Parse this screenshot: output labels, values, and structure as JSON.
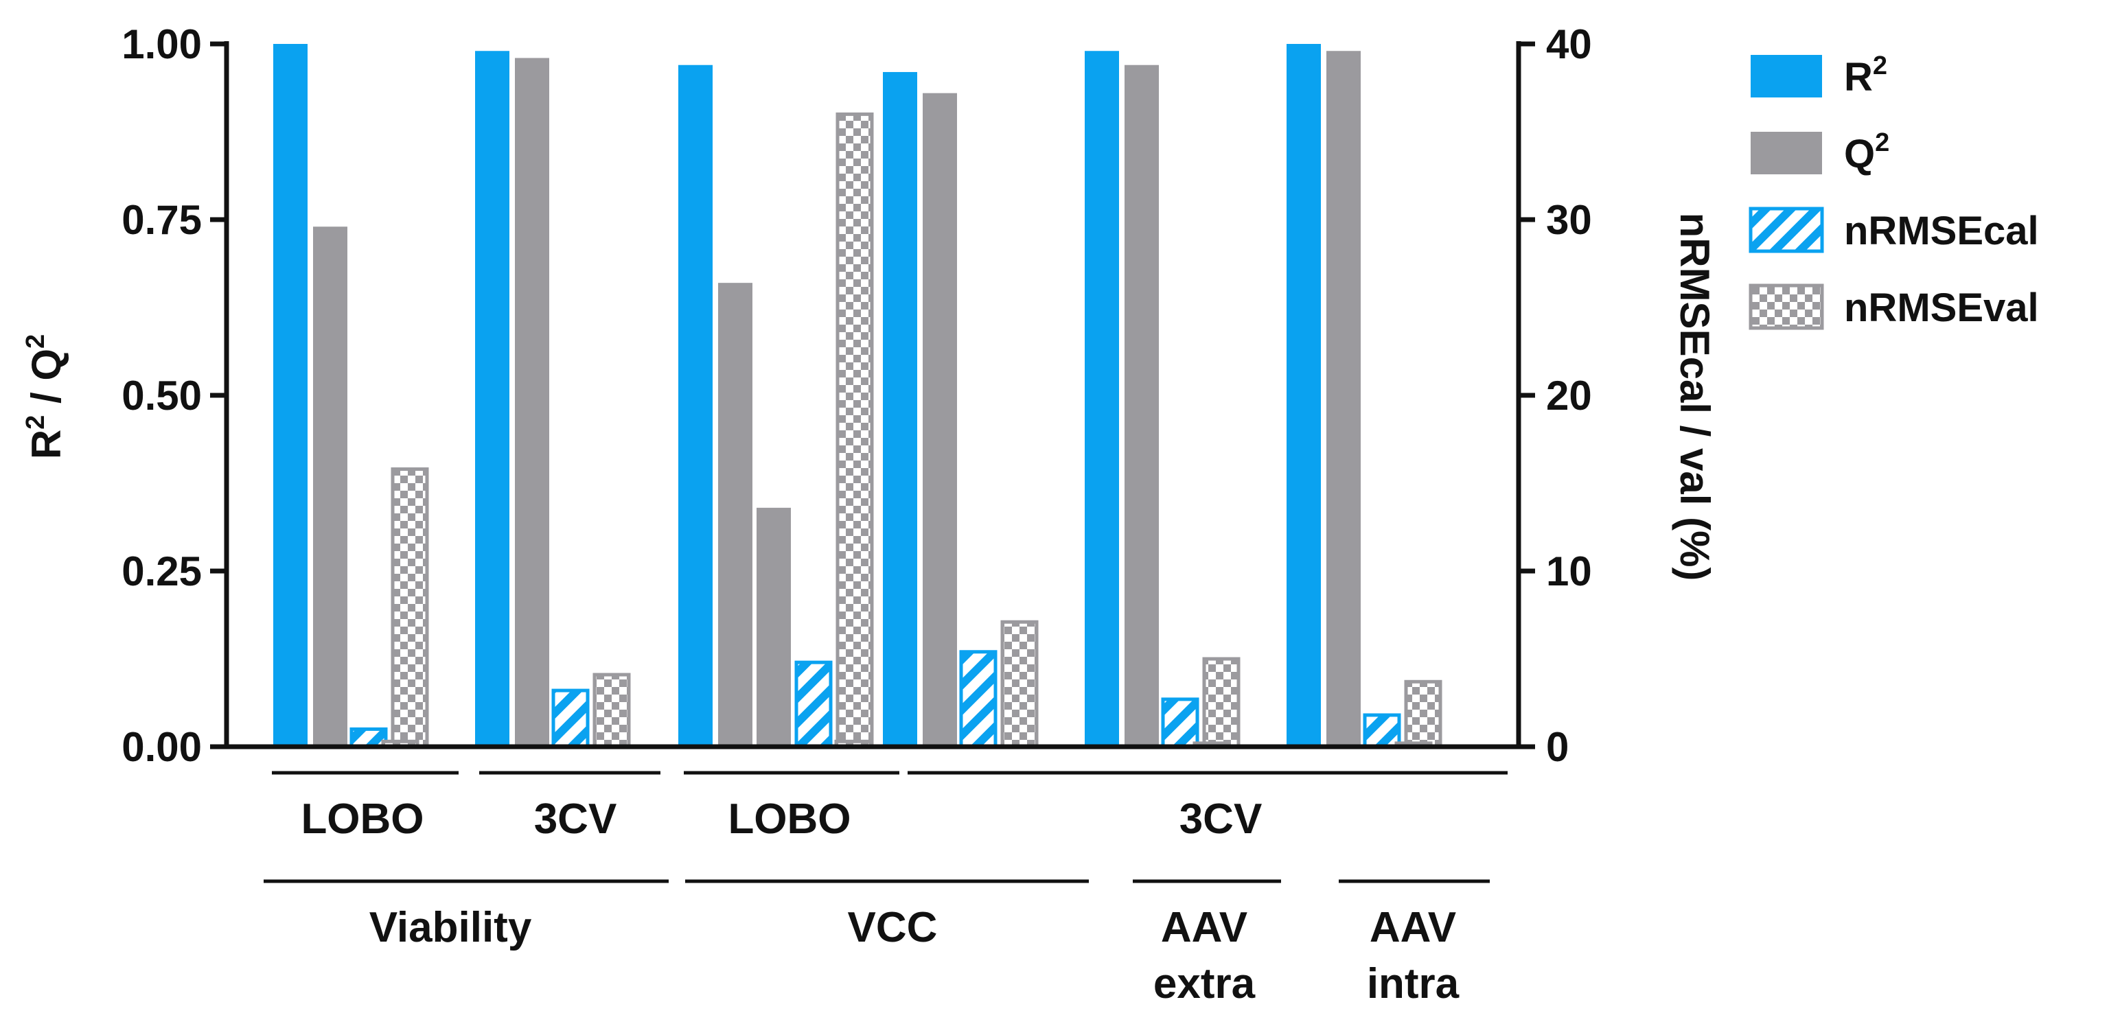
{
  "chart_data": {
    "type": "bar",
    "title": "",
    "ylabel_left": {
      "base": "R",
      "sup": "2",
      "mid": " / Q",
      "sup2": "2"
    },
    "ylabel_right": "nRMSEcal / val (%)",
    "ylim_left": [
      0,
      1.0
    ],
    "ylim_right": [
      0,
      40
    ],
    "left_ticks": [
      "0.00",
      "0.25",
      "0.50",
      "0.75",
      "1.00"
    ],
    "right_ticks": [
      "0",
      "10",
      "20",
      "30",
      "40"
    ],
    "series": [
      {
        "name": "R2",
        "label_base": "R",
        "label_sup": "2",
        "axis": "left",
        "color": "#0aa2f0",
        "pattern": "solid"
      },
      {
        "name": "Q2",
        "label_base": "Q",
        "label_sup": "2",
        "axis": "left",
        "color": "#9b9a9e",
        "pattern": "solid"
      },
      {
        "name": "nRMSEcal",
        "label_base": "nRMSEcal",
        "label_sup": "",
        "axis": "right",
        "color": "#0aa2f0",
        "pattern": "hatch"
      },
      {
        "name": "nRMSEval",
        "label_base": "nRMSEval",
        "label_sup": "",
        "axis": "right",
        "color": "#9b9a9e",
        "pattern": "checker"
      }
    ],
    "clusters": [
      {
        "id": "viability-lobo",
        "R2": 1.0,
        "Q2": 0.74,
        "nRMSEcal": 1.0,
        "nRMSEval": 15.8,
        "extra": {
          "series": "nRMSEval",
          "value": 0.3
        }
      },
      {
        "id": "viability-3cv",
        "R2": 0.99,
        "Q2": 0.98,
        "nRMSEcal": 3.2,
        "nRMSEval": 4.1
      },
      {
        "id": "vcc-lobo",
        "R2": 0.97,
        "Q2": 0.66,
        "Q2b": 0.34,
        "nRMSEcal": 4.8,
        "nRMSEval": 36.0,
        "extra": {
          "series": "nRMSEval",
          "value": 0.3
        }
      },
      {
        "id": "vcc-3cv",
        "R2": 0.96,
        "Q2": 0.93,
        "nRMSEcal": 5.4,
        "nRMSEval": 7.1
      },
      {
        "id": "aav-extra-3cv",
        "R2": 0.99,
        "Q2": 0.97,
        "nRMSEcal": 2.7,
        "nRMSEval": 5.0,
        "extra": {
          "series": "nRMSEval",
          "value": 0.2
        }
      },
      {
        "id": "aav-intra-3cv",
        "R2": 1.0,
        "Q2": 0.99,
        "nRMSEcal": 1.8,
        "nRMSEval": 3.7,
        "extra": {
          "series": "nRMSEval",
          "value": 0.2
        }
      }
    ],
    "method_labels": [
      "LOBO",
      "3CV",
      "LOBO",
      "3CV"
    ],
    "group_labels": [
      "Viability",
      "VCC",
      "AAV extra",
      "AAV intra"
    ],
    "group_label_lines": [
      [
        "Viability"
      ],
      [
        "VCC"
      ],
      [
        "AAV",
        "extra"
      ],
      [
        "AAV",
        "intra"
      ]
    ]
  }
}
